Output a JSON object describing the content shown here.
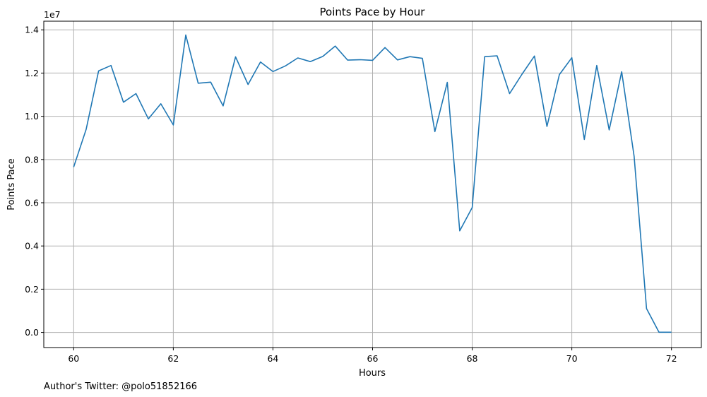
{
  "chart_data": {
    "type": "line",
    "title": "Points Pace by Hour",
    "xlabel": "Hours",
    "ylabel": "Points Pace",
    "y_multiplier": "1e7",
    "xlim": [
      59.4,
      72.6
    ],
    "ylim": [
      -0.07,
      1.44
    ],
    "x_ticks": [
      60,
      62,
      64,
      66,
      68,
      70,
      72
    ],
    "y_ticks": [
      0.0,
      0.2,
      0.4,
      0.6,
      0.8,
      1.0,
      1.2,
      1.4
    ],
    "grid": true,
    "line_color": "#1f77b4",
    "series": [
      {
        "x": [
          60.0,
          60.25,
          60.5,
          60.75,
          61.0,
          61.25,
          61.5,
          61.75,
          62.0,
          62.25,
          62.5,
          62.75,
          63.0,
          63.25,
          63.5,
          63.75,
          64.0,
          64.25,
          64.5,
          64.75,
          65.0,
          65.25,
          65.5,
          65.75,
          66.0,
          66.25,
          66.5,
          66.75,
          67.0,
          67.25,
          67.5,
          67.75,
          68.0,
          68.25,
          68.5,
          68.75,
          69.0,
          69.25,
          69.5,
          69.75,
          70.0,
          70.25,
          70.5,
          70.75,
          71.0,
          71.25,
          71.5,
          71.75,
          72.0
        ],
        "values": [
          0.765,
          0.94,
          1.21,
          1.235,
          1.065,
          1.105,
          0.988,
          1.058,
          0.96,
          1.376,
          1.153,
          1.158,
          1.048,
          1.275,
          1.147,
          1.251,
          1.207,
          1.233,
          1.27,
          1.253,
          1.277,
          1.325,
          1.26,
          1.262,
          1.259,
          1.318,
          1.261,
          1.276,
          1.268,
          0.929,
          1.157,
          0.47,
          0.578,
          1.276,
          1.28,
          1.105,
          1.195,
          1.279,
          0.953,
          1.193,
          1.271,
          0.893,
          1.235,
          0.937,
          1.206,
          0.815,
          0.11,
          0.001,
          0.001
        ]
      }
    ]
  },
  "footer": {
    "credit": "Author's Twitter: @polo51852166"
  }
}
